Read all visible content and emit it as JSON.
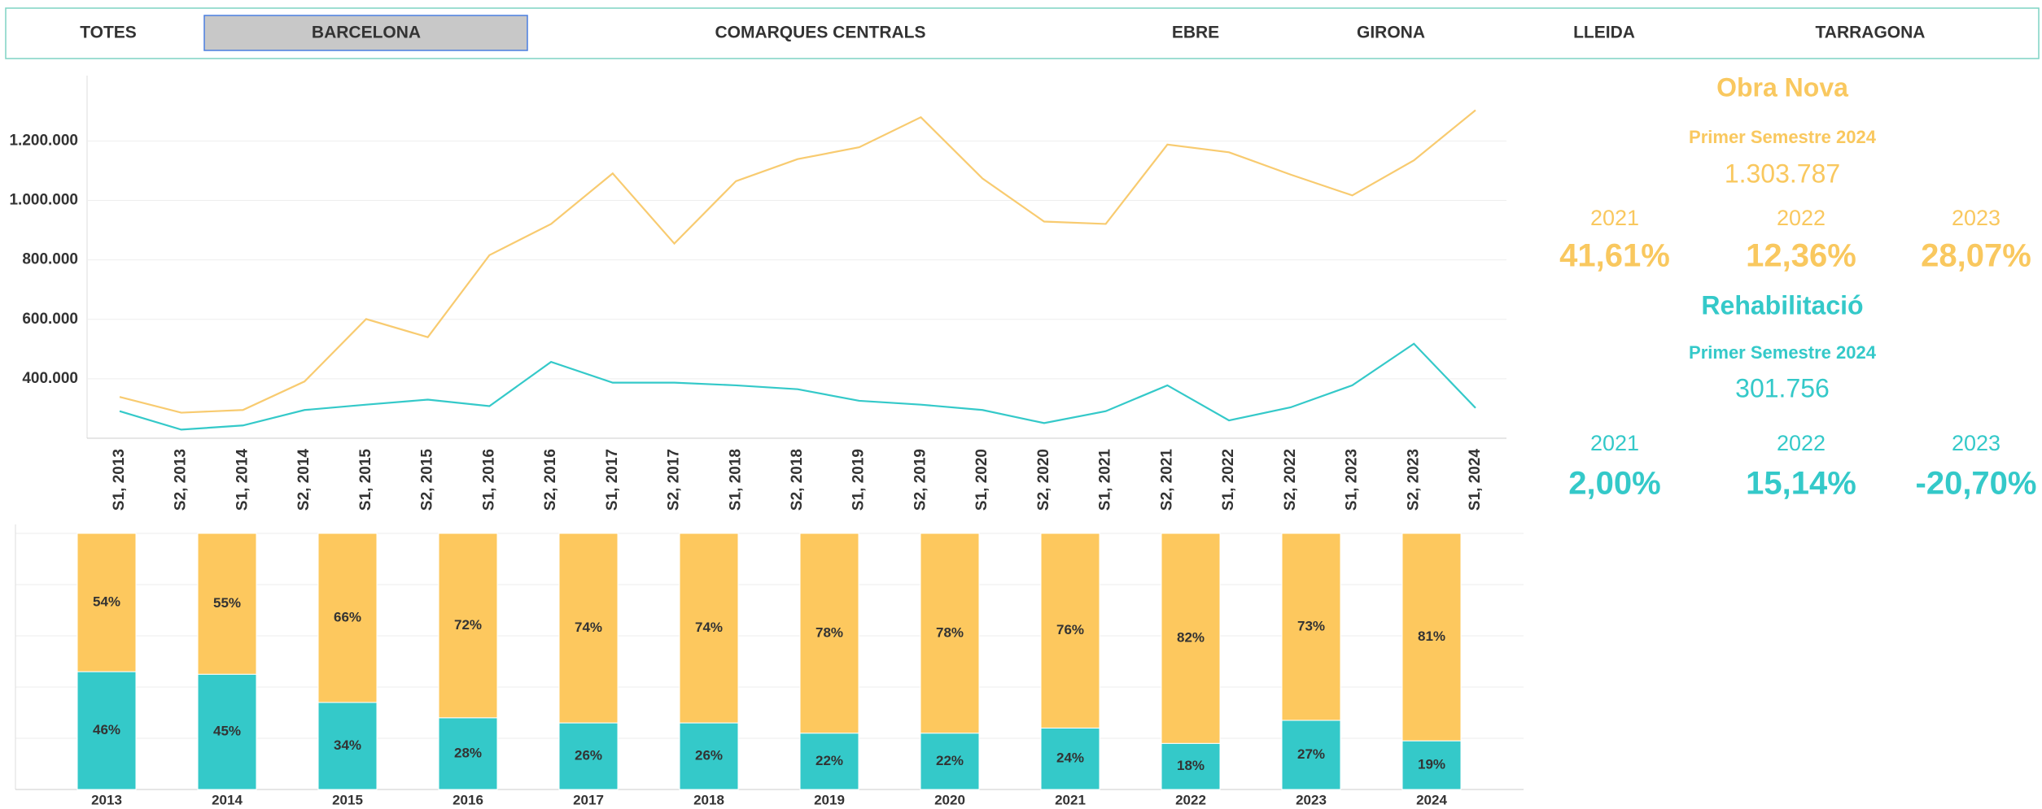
{
  "tabs": [
    "TOTES",
    "BARCELONA",
    "COMARQUES CENTRALS",
    "EBRE",
    "GIRONA",
    "LLEIDA",
    "TARRAGONA"
  ],
  "selected_tab": 1,
  "chart_data": [
    {
      "type": "line",
      "categories": [
        "S1, 2013",
        "S2, 2013",
        "S1, 2014",
        "S2, 2014",
        "S1, 2015",
        "S2, 2015",
        "S1, 2016",
        "S2, 2016",
        "S1, 2017",
        "S2, 2017",
        "S1, 2018",
        "S2, 2018",
        "S1, 2019",
        "S2, 2019",
        "S1, 2020",
        "S2, 2020",
        "S1, 2021",
        "S2, 2021",
        "S1, 2022",
        "S2, 2022",
        "S1, 2023",
        "S2, 2023",
        "S1, 2024"
      ],
      "series": [
        {
          "color": "#f8cb70",
          "values": [
            339000,
            286000,
            295000,
            391000,
            601000,
            540000,
            816000,
            921000,
            1091000,
            855000,
            1065000,
            1139000,
            1179000,
            1280000,
            1074000,
            929000,
            921000,
            1188000,
            1162000,
            1087000,
            1017000,
            1135000,
            1303787
          ]
        },
        {
          "color": "#34c9c9",
          "values": [
            291000,
            229000,
            243000,
            295000,
            313000,
            330000,
            308000,
            457000,
            387000,
            387000,
            378000,
            365000,
            326000,
            313000,
            295000,
            251000,
            291000,
            378000,
            260000,
            304000,
            378000,
            518000,
            301756
          ]
        }
      ],
      "ylim": [
        200000,
        1420000
      ],
      "yticks": [
        {
          "value": 400000,
          "label": "400.000"
        },
        {
          "value": 600000,
          "label": "600.000"
        },
        {
          "value": 800000,
          "label": "800.000"
        },
        {
          "value": 1000000,
          "label": "1.000.000"
        },
        {
          "value": 1200000,
          "label": "1.200.000"
        }
      ],
      "grid": true
    },
    {
      "type": "stacked_bar",
      "categories": [
        "2013",
        "2014",
        "2015",
        "2016",
        "2017",
        "2018",
        "2019",
        "2020",
        "2021",
        "2022",
        "2023",
        "2024"
      ],
      "series": [
        {
          "color": "#34c9c9",
          "values": [
            46,
            45,
            34,
            28,
            26,
            26,
            22,
            22,
            24,
            18,
            27,
            19
          ],
          "value_labels": [
            "46%",
            "45%",
            "34%",
            "28%",
            "26%",
            "26%",
            "22%",
            "22%",
            "24%",
            "18%",
            "27%",
            "19%"
          ]
        },
        {
          "color": "#fdc85e",
          "values": [
            54,
            55,
            66,
            72,
            74,
            74,
            78,
            78,
            76,
            82,
            73,
            81
          ],
          "value_labels": [
            "54%",
            "55%",
            "66%",
            "72%",
            "74%",
            "74%",
            "78%",
            "78%",
            "76%",
            "82%",
            "73%",
            "81%"
          ]
        }
      ],
      "ylim": [
        0,
        100
      ],
      "yticks": [
        20,
        40,
        60,
        80,
        100
      ],
      "grid": true
    }
  ],
  "kpis": [
    {
      "color": "#f9c85f",
      "title": "Obra Nova",
      "period": "Primer Semestre 2024",
      "value": "1.303.787",
      "years": [
        "2021",
        "2022",
        "2023"
      ],
      "changes": [
        "41,61%",
        "12,36%",
        "28,07%"
      ]
    },
    {
      "color": "#34c9c9",
      "title": "Rehabilitació",
      "period": "Primer Semestre 2024",
      "value": "301.756",
      "years": [
        "2021",
        "2022",
        "2023"
      ],
      "changes": [
        "2,00%",
        "15,14%",
        "-20,70%"
      ]
    }
  ]
}
